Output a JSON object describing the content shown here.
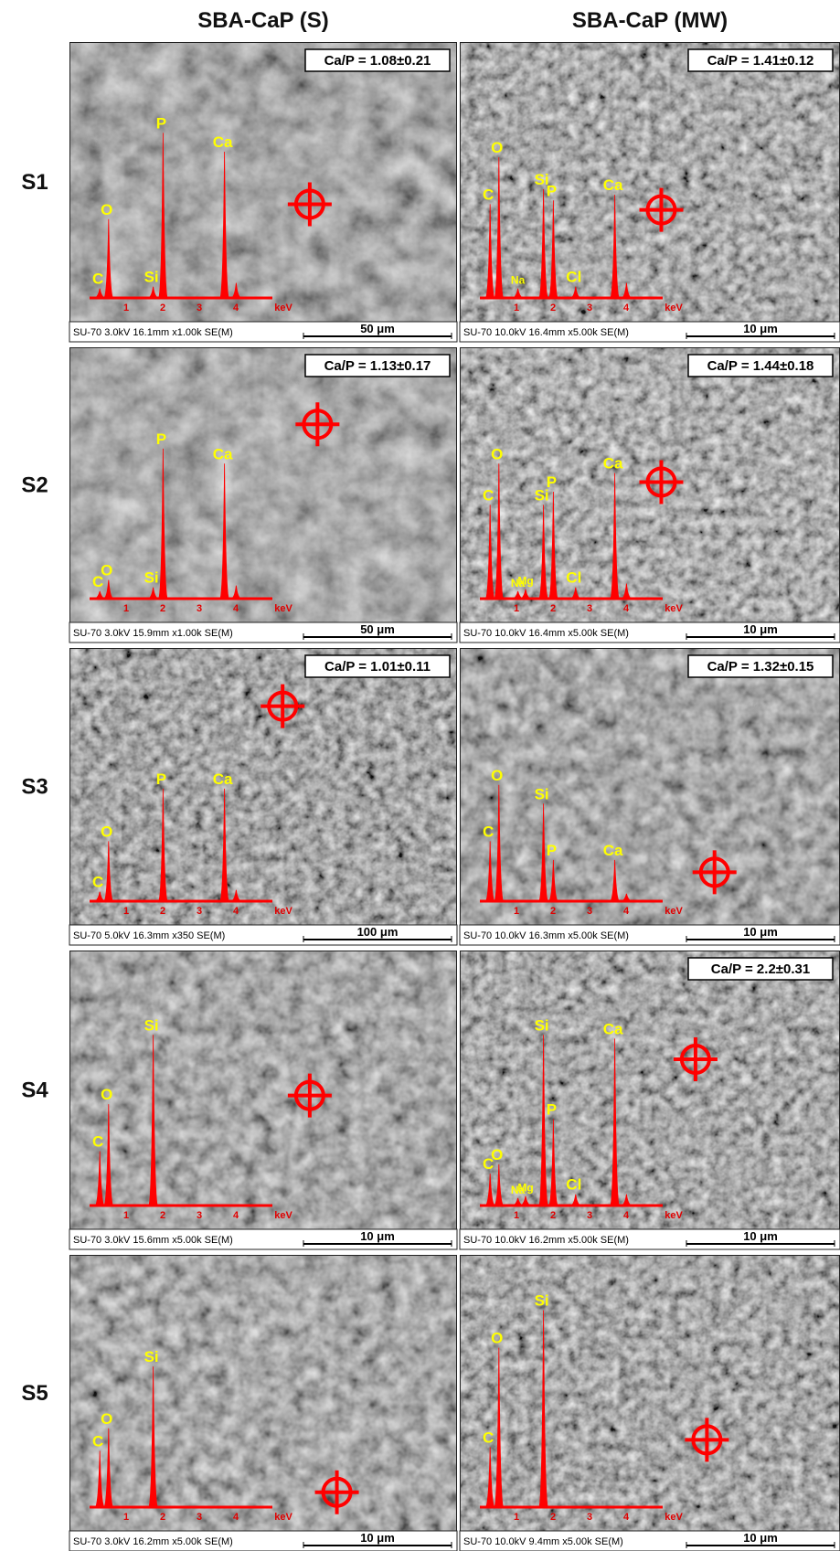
{
  "columns": [
    "SBA-CaP (S)",
    "SBA-CaP (MW)"
  ],
  "energy_ticks": [
    1,
    2,
    3,
    4
  ],
  "energy_unit": "keV",
  "rows": [
    {
      "label": "S1",
      "panels": [
        {
          "ratio": "Ca/P = 1.08±0.21",
          "info": "SU-70 3.0kV 16.1mm x1.00k SE(M)",
          "scale": "50 μm",
          "peaks": [
            {
              "label": "C",
              "energy": 0.28,
              "height": 5
            },
            {
              "label": "O",
              "energy": 0.52,
              "height": 42
            },
            {
              "label": "Si",
              "energy": 1.74,
              "height": 6
            },
            {
              "label": "P",
              "energy": 2.01,
              "height": 88
            },
            {
              "label": "Ca",
              "energy": 3.69,
              "height": 78
            },
            {
              "energy": 4.01,
              "height": 8
            }
          ]
        },
        {
          "ratio": "Ca/P = 1.41±0.12",
          "info": "SU-70 10.0kV 16.4mm x5.00k SE(M)",
          "scale": "10 μm",
          "peaks": [
            {
              "label": "C",
              "energy": 0.28,
              "height": 50
            },
            {
              "label": "O",
              "energy": 0.52,
              "height": 75
            },
            {
              "label": "Na",
              "energy": 1.04,
              "height": 5
            },
            {
              "label": "Si",
              "energy": 1.74,
              "height": 58
            },
            {
              "label": "P",
              "energy": 2.01,
              "height": 52
            },
            {
              "label": "Cl",
              "energy": 2.62,
              "height": 6
            },
            {
              "label": "Ca",
              "energy": 3.69,
              "height": 55
            },
            {
              "energy": 4.01,
              "height": 8
            }
          ]
        }
      ]
    },
    {
      "label": "S2",
      "panels": [
        {
          "ratio": "Ca/P = 1.13±0.17",
          "info": "SU-70 3.0kV 15.9mm x1.00k SE(M)",
          "scale": "50 μm",
          "peaks": [
            {
              "label": "C",
              "energy": 0.28,
              "height": 4
            },
            {
              "label": "O",
              "energy": 0.52,
              "height": 10
            },
            {
              "label": "Si",
              "energy": 1.74,
              "height": 6
            },
            {
              "label": "P",
              "energy": 2.01,
              "height": 80
            },
            {
              "label": "Ca",
              "energy": 3.69,
              "height": 72
            },
            {
              "energy": 4.01,
              "height": 7
            }
          ]
        },
        {
          "ratio": "Ca/P = 1.44±0.18",
          "info": "SU-70 10.0kV 16.4mm x5.00k SE(M)",
          "scale": "10 μm",
          "peaks": [
            {
              "label": "C",
              "energy": 0.28,
              "height": 50
            },
            {
              "label": "O",
              "energy": 0.52,
              "height": 72
            },
            {
              "label": "Na",
              "energy": 1.04,
              "height": 4
            },
            {
              "label": "Mg",
              "energy": 1.25,
              "height": 5
            },
            {
              "label": "Si",
              "energy": 1.74,
              "height": 50
            },
            {
              "label": "P",
              "energy": 2.01,
              "height": 57
            },
            {
              "label": "Cl",
              "energy": 2.62,
              "height": 6
            },
            {
              "label": "Ca",
              "energy": 3.69,
              "height": 67
            },
            {
              "energy": 4.01,
              "height": 8
            }
          ]
        }
      ]
    },
    {
      "label": "S3",
      "panels": [
        {
          "ratio": "Ca/P = 1.01±0.11",
          "info": "SU-70 5.0kV 16.3mm x350 SE(M)",
          "scale": "100 μm",
          "peaks": [
            {
              "label": "C",
              "energy": 0.28,
              "height": 5
            },
            {
              "label": "O",
              "energy": 0.52,
              "height": 32
            },
            {
              "label": "P",
              "energy": 2.01,
              "height": 60
            },
            {
              "label": "Ca",
              "energy": 3.69,
              "height": 60
            },
            {
              "energy": 4.01,
              "height": 6
            }
          ]
        },
        {
          "ratio": "Ca/P = 1.32±0.15",
          "info": "SU-70 10.0kV 16.3mm x5.00k SE(M)",
          "scale": "10 μm",
          "peaks": [
            {
              "label": "C",
              "energy": 0.28,
              "height": 32
            },
            {
              "label": "O",
              "energy": 0.52,
              "height": 62
            },
            {
              "label": "Si",
              "energy": 1.74,
              "height": 52
            },
            {
              "label": "P",
              "energy": 2.01,
              "height": 22
            },
            {
              "label": "Ca",
              "energy": 3.69,
              "height": 22
            },
            {
              "energy": 4.01,
              "height": 4
            }
          ]
        }
      ]
    },
    {
      "label": "S4",
      "panels": [
        {
          "info": "SU-70 3.0kV 15.6mm x5.00k SE(M)",
          "scale": "10 μm",
          "peaks": [
            {
              "label": "C",
              "energy": 0.28,
              "height": 29
            },
            {
              "label": "O",
              "energy": 0.52,
              "height": 54
            },
            {
              "label": "Si",
              "energy": 1.74,
              "height": 91
            }
          ]
        },
        {
          "ratio": "Ca/P = 2.2±0.31",
          "info": "SU-70 10.0kV 16.2mm x5.00k SE(M)",
          "scale": "10 μm",
          "peaks": [
            {
              "label": "C",
              "energy": 0.28,
              "height": 17
            },
            {
              "label": "O",
              "energy": 0.52,
              "height": 22
            },
            {
              "label": "Na",
              "energy": 1.04,
              "height": 4
            },
            {
              "label": "Mg",
              "energy": 1.25,
              "height": 5
            },
            {
              "label": "Si",
              "energy": 1.74,
              "height": 91
            },
            {
              "label": "P",
              "energy": 2.01,
              "height": 46
            },
            {
              "label": "Cl",
              "energy": 2.62,
              "height": 6
            },
            {
              "label": "Ca",
              "energy": 3.69,
              "height": 89
            },
            {
              "energy": 4.01,
              "height": 6
            }
          ]
        }
      ]
    },
    {
      "label": "S5",
      "panels": [
        {
          "info": "SU-70 3.0kV 16.2mm x5.00k SE(M)",
          "scale": "10 μm",
          "peaks": [
            {
              "label": "C",
              "energy": 0.28,
              "height": 30
            },
            {
              "label": "O",
              "energy": 0.52,
              "height": 42
            },
            {
              "label": "Si",
              "energy": 1.74,
              "height": 75
            }
          ]
        },
        {
          "info": "SU-70 10.0kV 9.4mm x5.00k SE(M)",
          "scale": "10 μm",
          "peaks": [
            {
              "label": "C",
              "energy": 0.28,
              "height": 32
            },
            {
              "label": "O",
              "energy": 0.52,
              "height": 85
            },
            {
              "label": "Si",
              "energy": 1.74,
              "height": 105
            }
          ]
        }
      ]
    }
  ]
}
